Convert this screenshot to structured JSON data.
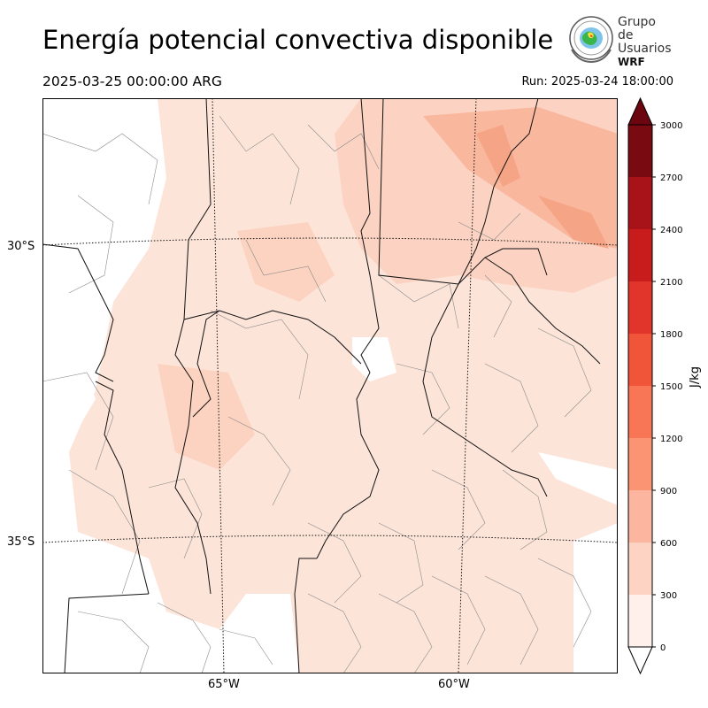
{
  "title": "Energía potencial convectiva disponible",
  "valid_time": "2025-03-25 00:00:00 ARG",
  "run_time": "Run: 2025-03-24 18:00:00",
  "logo": {
    "line1": "Grupo de",
    "line2": "Usuarios",
    "line3": "WRF"
  },
  "map": {
    "lat_labels": [
      "30°S",
      "35°S"
    ],
    "lon_labels": [
      "65°W",
      "60°W"
    ]
  },
  "colorbar": {
    "unit": "J/kg",
    "ticks": [
      "0",
      "300",
      "600",
      "900",
      "1200",
      "1500",
      "1800",
      "2100",
      "2400",
      "2700",
      "3000"
    ],
    "colors": [
      "#fff0eb",
      "#fdd3c3",
      "#fcb59f",
      "#fb9473",
      "#f87555",
      "#f0553a",
      "#e1342a",
      "#c81c1c",
      "#a71318",
      "#7a0a12"
    ],
    "extend": "both"
  },
  "colors": {
    "light": "#fde4d9",
    "medium": "#fcd2c0",
    "strong": "#f9b69d",
    "border": "#111111",
    "department": "#888888"
  }
}
